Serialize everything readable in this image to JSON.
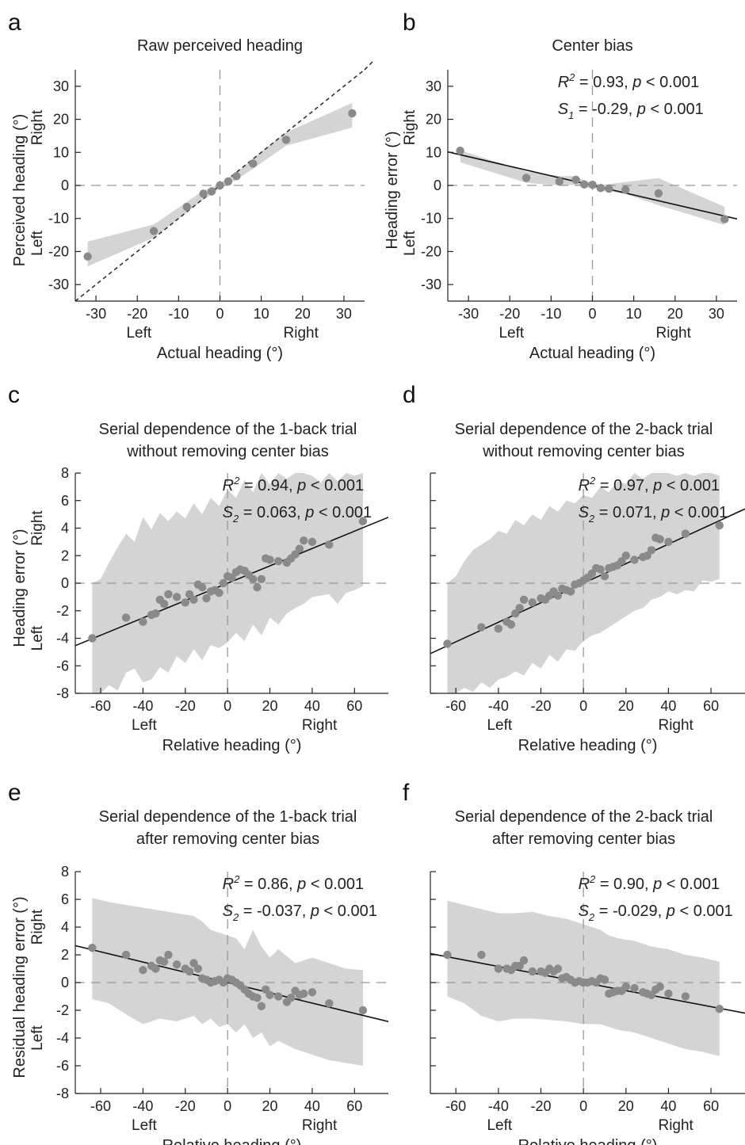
{
  "chart_data": [
    {
      "id": "a",
      "panel": "a",
      "type": "scatter",
      "title": [
        "Raw perceived heading"
      ],
      "xlabel": "Actual heading (°)",
      "ylabel": "Perceived heading (°)",
      "xlim": [
        -35,
        35
      ],
      "ylim": [
        -35,
        35
      ],
      "xticks": [
        -30,
        -20,
        -10,
        0,
        10,
        20,
        30
      ],
      "yticks": [
        -30,
        -20,
        -10,
        0,
        10,
        20,
        30
      ],
      "x_dir_labels": [
        "Left",
        "Right"
      ],
      "y_dir_labels": [
        "Left",
        "Right"
      ],
      "identity_line": true,
      "fit_line": null,
      "points": {
        "x": [
          -32,
          -16,
          -8,
          -4,
          -2,
          0,
          2,
          4,
          8,
          16,
          32
        ],
        "y": [
          -21.5,
          -13.8,
          -6.5,
          -2.5,
          -1.8,
          0,
          1.2,
          2.8,
          6.6,
          13.8,
          21.8
        ]
      },
      "band": {
        "x": [
          -32,
          -16,
          -8,
          -4,
          -2,
          0,
          2,
          4,
          8,
          16,
          32
        ],
        "lower": [
          -24.5,
          -15.8,
          -8.2,
          -4.2,
          -2.8,
          -0.8,
          0.2,
          1.8,
          5.0,
          12.0,
          17.5
        ],
        "upper": [
          -17.0,
          -11.8,
          -5.0,
          -1.5,
          -0.8,
          0.8,
          2.2,
          3.8,
          8.2,
          16.0,
          25.0
        ]
      },
      "stats": []
    },
    {
      "id": "b",
      "panel": "b",
      "type": "scatter",
      "title": [
        "Center bias"
      ],
      "xlabel": "Actual heading (°)",
      "ylabel": "Heading error (°)",
      "xlim": [
        -35,
        35
      ],
      "ylim": [
        -35,
        35
      ],
      "xticks": [
        -30,
        -20,
        -10,
        0,
        10,
        20,
        30
      ],
      "yticks": [
        -30,
        -20,
        -10,
        0,
        10,
        20,
        30
      ],
      "x_dir_labels": [
        "Left",
        "Right"
      ],
      "y_dir_labels": [
        "Left",
        "Right"
      ],
      "identity_line": false,
      "fit_line": {
        "slope": -0.29,
        "intercept": 0
      },
      "points": {
        "x": [
          -32,
          -16,
          -8,
          -4,
          -2,
          0,
          2,
          4,
          8,
          16,
          32
        ],
        "y": [
          10.5,
          2.3,
          1.2,
          1.7,
          0.3,
          0.2,
          -0.8,
          -1.0,
          -1.3,
          -2.4,
          -10.2
        ]
      },
      "band": {
        "x": [
          -32,
          -16,
          -8,
          -4,
          -2,
          0,
          2,
          4,
          8,
          16,
          32
        ],
        "lower": [
          7.0,
          0.8,
          0.0,
          0.2,
          -0.8,
          -0.6,
          -1.6,
          -1.8,
          -2.6,
          -6.0,
          -12.0
        ],
        "upper": [
          10.6,
          4.2,
          2.8,
          2.8,
          1.4,
          1.0,
          0.2,
          0.4,
          1.0,
          2.2,
          -6.5
        ]
      },
      "stats": [
        {
          "sym": "R",
          "sup": "2",
          "sub": "",
          "text": " =  0.93, ",
          "p": "p",
          "ptext": " < 0.001"
        },
        {
          "sym": "S",
          "sup": "",
          "sub": "1",
          "text": " = -0.29, ",
          "p": "p",
          "ptext": " < 0.001"
        }
      ]
    },
    {
      "id": "c",
      "panel": "c",
      "type": "scatter",
      "title": [
        "Serial dependence of the 1-back trial",
        "without removing center bias"
      ],
      "xlabel": "Relative heading (°)",
      "ylabel": "Heading error (°)",
      "xlim": [
        -72,
        76
      ],
      "ylim": [
        -8,
        8
      ],
      "xticks": [
        -60,
        -40,
        -20,
        0,
        20,
        40,
        60
      ],
      "yticks": [
        -8,
        -6,
        -4,
        -2,
        0,
        2,
        4,
        6,
        8
      ],
      "x_dir_labels": [
        "Left",
        "Right"
      ],
      "y_dir_labels": [
        "Left",
        "Right"
      ],
      "identity_line": false,
      "fit_line": {
        "slope": 0.063,
        "intercept": 0
      },
      "points": {
        "x": [
          -64,
          -48,
          -40,
          -36,
          -34,
          -32,
          -30,
          -28,
          -24,
          -20,
          -18,
          -16,
          -14,
          -12,
          -10,
          -8,
          -6,
          -4,
          -2,
          0,
          2,
          4,
          6,
          8,
          10,
          12,
          14,
          16,
          18,
          20,
          24,
          28,
          30,
          32,
          34,
          36,
          40,
          48,
          64
        ],
        "y": [
          -4.0,
          -2.5,
          -2.8,
          -2.3,
          -2.2,
          -1.2,
          -1.5,
          -0.8,
          -1.0,
          -1.4,
          -0.8,
          -1.2,
          -0.1,
          -0.3,
          -1.1,
          -0.6,
          -0.5,
          -0.7,
          0.0,
          0.5,
          0.4,
          0.8,
          1.0,
          0.9,
          0.6,
          0.3,
          -0.3,
          0.3,
          1.8,
          1.7,
          1.6,
          1.5,
          1.8,
          2.1,
          2.5,
          3.1,
          3.0,
          2.8,
          4.5
        ]
      },
      "band": {
        "x": [
          -64,
          -60,
          -56,
          -52,
          -48,
          -44,
          -40,
          -36,
          -32,
          -28,
          -24,
          -20,
          -16,
          -12,
          -8,
          -4,
          0,
          4,
          8,
          12,
          16,
          20,
          24,
          28,
          32,
          36,
          40,
          44,
          48,
          52,
          56,
          60,
          64
        ],
        "lower": [
          -8.0,
          -8.0,
          -7.4,
          -7.8,
          -6.5,
          -6.2,
          -7.2,
          -7.0,
          -6.1,
          -6.5,
          -5.3,
          -5.8,
          -4.8,
          -5.6,
          -4.5,
          -4.7,
          -4.3,
          -3.6,
          -4.2,
          -3.0,
          -3.8,
          -2.5,
          -3.0,
          -2.2,
          -1.8,
          -1.5,
          -1.0,
          -0.9,
          -0.8,
          -1.5,
          -0.7,
          -0.5,
          -0.2
        ],
        "upper": [
          0.0,
          0.3,
          1.5,
          2.6,
          3.6,
          3.0,
          4.8,
          3.9,
          5.1,
          4.5,
          5.2,
          4.7,
          5.8,
          5.0,
          6.2,
          5.6,
          6.8,
          6.2,
          7.5,
          6.6,
          8.0,
          7.2,
          8.0,
          7.6,
          8.0,
          8.0,
          7.8,
          7.3,
          8.0,
          7.4,
          8.0,
          7.8,
          8.0
        ]
      },
      "stats": [
        {
          "sym": "R",
          "sup": "2",
          "sub": "",
          "text": " =  0.94, ",
          "p": "p",
          "ptext": " < 0.001"
        },
        {
          "sym": "S",
          "sup": "",
          "sub": "2",
          "text": " = 0.063, ",
          "p": "p",
          "ptext": " < 0.001"
        }
      ]
    },
    {
      "id": "d",
      "panel": "d",
      "type": "scatter",
      "title": [
        "Serial dependence of the 2-back trial",
        "without removing center bias"
      ],
      "xlabel": "Relative heading (°)",
      "ylabel": "",
      "xlim": [
        -72,
        76
      ],
      "ylim": [
        -8,
        8
      ],
      "xticks": [
        -60,
        -40,
        -20,
        0,
        20,
        40,
        60
      ],
      "yticks": [
        -8,
        -6,
        -4,
        -2,
        0,
        2,
        4,
        6,
        8
      ],
      "show_ytick_labels": false,
      "x_dir_labels": [
        "Left",
        "Right"
      ],
      "y_dir_labels": [],
      "identity_line": false,
      "fit_line": {
        "slope": 0.071,
        "intercept": 0
      },
      "points": {
        "x": [
          -64,
          -48,
          -40,
          -36,
          -34,
          -32,
          -30,
          -28,
          -24,
          -20,
          -18,
          -16,
          -14,
          -12,
          -10,
          -8,
          -6,
          -4,
          -2,
          0,
          2,
          4,
          6,
          8,
          10,
          12,
          14,
          16,
          18,
          20,
          24,
          28,
          30,
          32,
          34,
          36,
          40,
          48,
          64
        ],
        "y": [
          -4.4,
          -3.2,
          -3.3,
          -2.8,
          -3.0,
          -2.2,
          -1.8,
          -1.2,
          -1.4,
          -1.1,
          -1.2,
          -0.9,
          -0.6,
          -0.9,
          -0.4,
          -0.5,
          -0.6,
          -0.1,
          0.0,
          0.2,
          0.4,
          0.7,
          1.1,
          1.0,
          0.5,
          1.1,
          1.2,
          1.3,
          1.6,
          2.0,
          1.7,
          1.9,
          2.0,
          2.4,
          3.3,
          3.2,
          3.0,
          3.6,
          4.2
        ]
      },
      "band": {
        "x": [
          -64,
          -60,
          -56,
          -52,
          -48,
          -44,
          -40,
          -36,
          -32,
          -28,
          -24,
          -20,
          -16,
          -12,
          -8,
          -4,
          0,
          4,
          8,
          12,
          16,
          20,
          24,
          28,
          32,
          36,
          40,
          44,
          48,
          52,
          56,
          60,
          64
        ],
        "lower": [
          -8.0,
          -8.0,
          -7.6,
          -7.9,
          -7.2,
          -7.6,
          -7.0,
          -6.8,
          -6.4,
          -6.7,
          -5.8,
          -6.2,
          -5.2,
          -5.7,
          -4.8,
          -4.9,
          -4.2,
          -3.8,
          -3.6,
          -3.2,
          -2.8,
          -2.4,
          -2.0,
          -1.8,
          -1.2,
          -1.0,
          -0.6,
          -0.8,
          -0.5,
          -0.6,
          0.2,
          0.1,
          0.3
        ],
        "upper": [
          0.0,
          0.5,
          1.6,
          2.4,
          2.8,
          3.2,
          3.8,
          3.6,
          4.6,
          4.2,
          5.0,
          4.6,
          5.6,
          5.2,
          6.0,
          5.8,
          6.4,
          6.2,
          7.0,
          6.6,
          7.4,
          7.2,
          8.0,
          7.6,
          8.0,
          8.0,
          8.0,
          7.8,
          8.0,
          7.8,
          8.0,
          8.0,
          7.8
        ]
      },
      "stats": [
        {
          "sym": "R",
          "sup": "2",
          "sub": "",
          "text": " =  0.97, ",
          "p": "p",
          "ptext": " < 0.001"
        },
        {
          "sym": "S",
          "sup": "",
          "sub": "2",
          "text": " = 0.071, ",
          "p": "p",
          "ptext": " < 0.001"
        }
      ]
    },
    {
      "id": "e",
      "panel": "e",
      "type": "scatter",
      "title": [
        "Serial dependence of the 1-back trial",
        "after removing center bias"
      ],
      "xlabel": "Relative heading (°)",
      "ylabel": "Residual heading error (°)",
      "xlim": [
        -72,
        76
      ],
      "ylim": [
        -8,
        8
      ],
      "xticks": [
        -60,
        -40,
        -20,
        0,
        20,
        40,
        60
      ],
      "yticks": [
        -8,
        -6,
        -4,
        -2,
        0,
        2,
        4,
        6,
        8
      ],
      "x_dir_labels": [
        "Left",
        "Right"
      ],
      "y_dir_labels": [
        "Left",
        "Right"
      ],
      "identity_line": false,
      "fit_line": {
        "slope": -0.037,
        "intercept": 0
      },
      "points": {
        "x": [
          -64,
          -48,
          -40,
          -36,
          -34,
          -32,
          -30,
          -28,
          -24,
          -20,
          -18,
          -16,
          -14,
          -12,
          -10,
          -8,
          -6,
          -4,
          -2,
          0,
          2,
          4,
          6,
          8,
          10,
          12,
          14,
          16,
          18,
          20,
          24,
          28,
          30,
          32,
          34,
          36,
          40,
          48,
          64
        ],
        "y": [
          2.5,
          2.0,
          0.9,
          1.2,
          1.0,
          1.6,
          1.5,
          2.0,
          1.3,
          1.0,
          0.8,
          1.4,
          1.0,
          0.3,
          0.2,
          0.0,
          0.1,
          0.2,
          0.0,
          0.3,
          0.2,
          0.0,
          -0.2,
          -0.5,
          -0.8,
          -1.0,
          -1.1,
          -1.7,
          -0.5,
          -0.9,
          -1.0,
          -1.4,
          -1.1,
          -0.6,
          -0.9,
          -0.8,
          -0.7,
          -1.5,
          -2.0
        ]
      },
      "band": {
        "x": [
          -64,
          -56,
          -48,
          -40,
          -32,
          -24,
          -16,
          -12,
          -8,
          -4,
          0,
          4,
          8,
          12,
          16,
          20,
          24,
          32,
          40,
          48,
          56,
          64
        ],
        "lower": [
          -1.2,
          -1.5,
          -2.3,
          -3.0,
          -2.6,
          -2.8,
          -2.4,
          -3.0,
          -2.6,
          -3.2,
          -3.0,
          -3.6,
          -3.0,
          -4.0,
          -3.6,
          -4.6,
          -4.2,
          -4.8,
          -5.2,
          -5.6,
          -5.8,
          -6.0
        ],
        "upper": [
          6.1,
          5.8,
          5.6,
          5.4,
          5.2,
          5.0,
          4.8,
          4.4,
          3.8,
          3.6,
          3.4,
          3.2,
          2.4,
          3.8,
          2.6,
          1.8,
          2.4,
          1.4,
          1.8,
          1.4,
          1.0,
          0.9
        ]
      },
      "stats": [
        {
          "sym": "R",
          "sup": "2",
          "sub": "",
          "text": " =  0.86, ",
          "p": "p",
          "ptext": " < 0.001"
        },
        {
          "sym": "S",
          "sup": "",
          "sub": "2",
          "text": " = -0.037, ",
          "p": "p",
          "ptext": " < 0.001"
        }
      ]
    },
    {
      "id": "f",
      "panel": "f",
      "type": "scatter",
      "title": [
        "Serial dependence of the 2-back trial",
        "after removing center bias"
      ],
      "xlabel": "Relative heading (°)",
      "ylabel": "",
      "xlim": [
        -72,
        76
      ],
      "ylim": [
        -8,
        8
      ],
      "xticks": [
        -60,
        -40,
        -20,
        0,
        20,
        40,
        60
      ],
      "yticks": [
        -8,
        -6,
        -4,
        -2,
        0,
        2,
        4,
        6,
        8
      ],
      "show_ytick_labels": false,
      "x_dir_labels": [
        "Left",
        "Right"
      ],
      "y_dir_labels": [],
      "identity_line": false,
      "fit_line": {
        "slope": -0.029,
        "intercept": 0
      },
      "points": {
        "x": [
          -64,
          -48,
          -40,
          -36,
          -34,
          -32,
          -30,
          -28,
          -24,
          -20,
          -18,
          -16,
          -14,
          -12,
          -10,
          -8,
          -6,
          -4,
          -2,
          0,
          2,
          4,
          6,
          8,
          10,
          12,
          14,
          16,
          18,
          20,
          24,
          28,
          30,
          32,
          34,
          36,
          40,
          48,
          64
        ],
        "y": [
          2.0,
          2.0,
          1.0,
          1.0,
          0.9,
          1.2,
          1.2,
          1.6,
          0.8,
          0.8,
          0.7,
          1.0,
          0.8,
          1.0,
          0.3,
          0.4,
          0.2,
          0.0,
          0.1,
          0.0,
          0.0,
          0.1,
          0.0,
          0.3,
          0.2,
          -0.8,
          -0.7,
          -0.6,
          -0.6,
          -0.3,
          -0.4,
          -0.7,
          -0.8,
          -0.9,
          -0.5,
          -0.3,
          -0.8,
          -1.0,
          -1.9
        ]
      },
      "band": {
        "x": [
          -64,
          -56,
          -48,
          -40,
          -32,
          -24,
          -16,
          -8,
          0,
          8,
          12,
          16,
          24,
          32,
          40,
          48,
          56,
          64
        ],
        "lower": [
          -1.0,
          -1.5,
          -2.4,
          -2.8,
          -2.6,
          -2.6,
          -2.7,
          -2.8,
          -3.0,
          -3.0,
          -3.2,
          -3.4,
          -3.6,
          -4.0,
          -4.4,
          -4.8,
          -5.0,
          -5.3
        ],
        "upper": [
          5.9,
          5.6,
          5.3,
          5.0,
          5.0,
          5.1,
          4.8,
          4.6,
          4.2,
          3.8,
          3.4,
          3.2,
          3.0,
          2.6,
          2.4,
          2.0,
          1.8,
          1.5
        ]
      },
      "stats": [
        {
          "sym": "R",
          "sup": "2",
          "sub": "",
          "text": " =  0.90, ",
          "p": "p",
          "ptext": " < 0.001"
        },
        {
          "sym": "S",
          "sup": "",
          "sub": "2",
          "text": " = -0.029, ",
          "p": "p",
          "ptext": " < 0.001"
        }
      ]
    }
  ]
}
